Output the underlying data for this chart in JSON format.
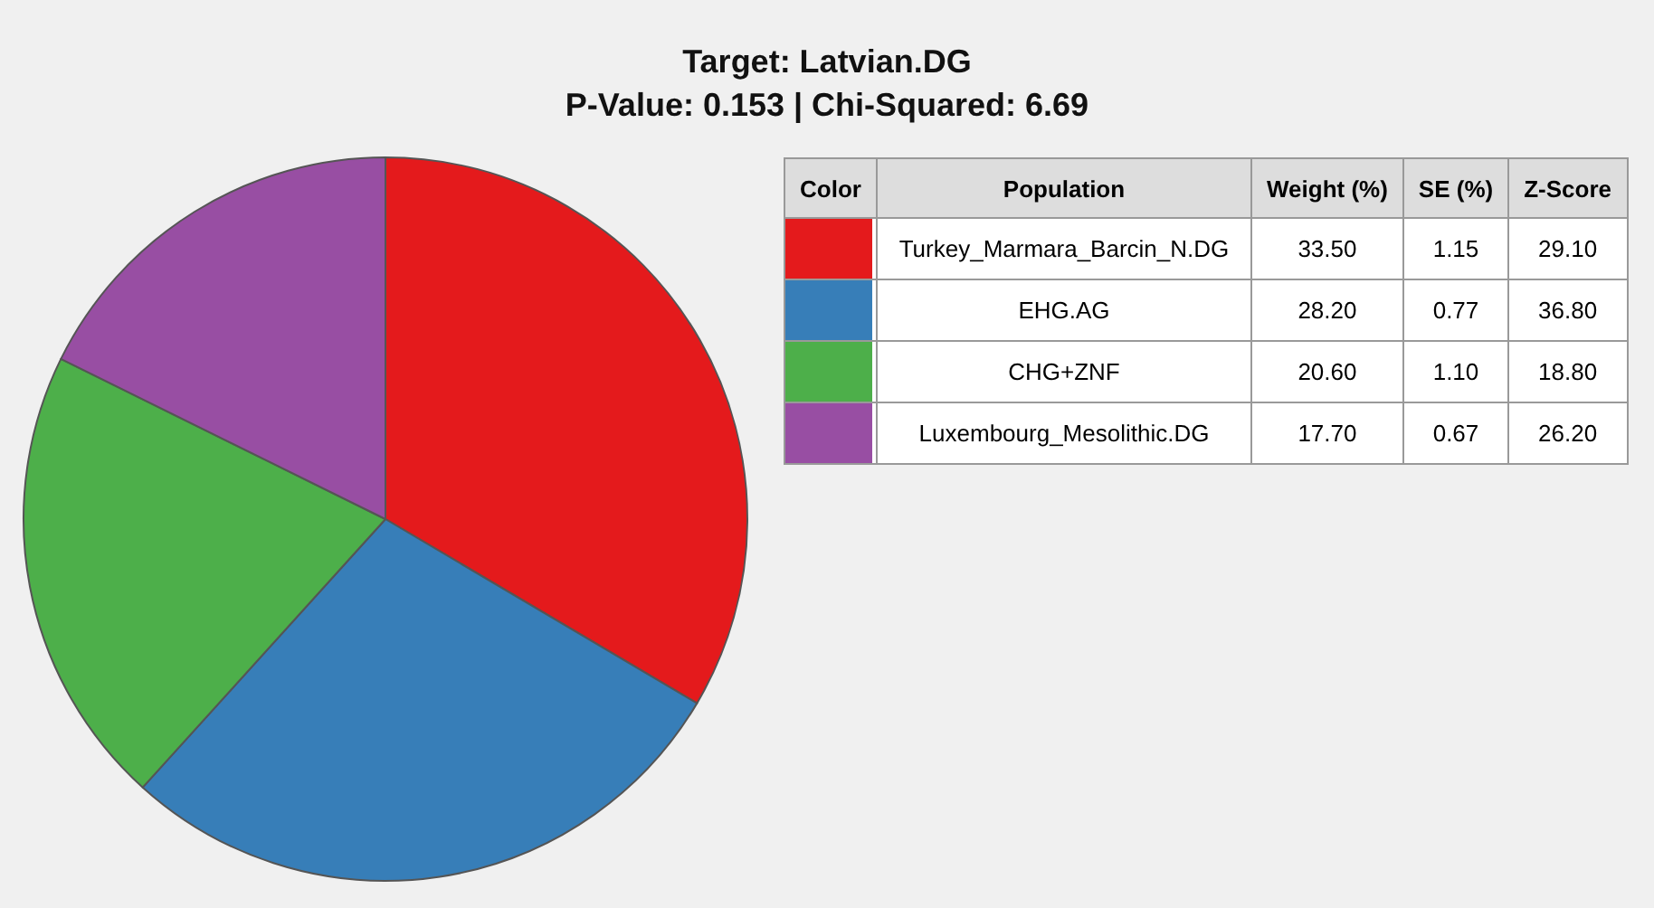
{
  "chart_data": [
    {
      "type": "pie",
      "title": "Target: Latvian.DG",
      "subtitle": "P-Value: 0.153 | Chi-Squared: 6.69",
      "values": [
        33.5,
        28.2,
        20.6,
        17.7
      ],
      "colors": [
        "#e41a1c",
        "#377eb8",
        "#4daf4a",
        "#984ea3"
      ]
    },
    {
      "type": "other",
      "annotations": [
        "Color",
        "Population"
      ],
      "categories": [
        "Turkey_Marmara_Barcin_N.DG",
        "EHG.AG",
        "CHG+ZNF",
        "Luxembourg_Mesolithic.DG"
      ],
      "colors": [
        "#e41a1c",
        "#377eb8",
        "#4daf4a",
        "#984ea3"
      ],
      "series": [
        {
          "name": "Weight (%)",
          "values": [
            33.5,
            28.2,
            20.6,
            17.7
          ],
          "value_labels": [
            "33.50",
            "28.20",
            "20.60",
            "17.70"
          ]
        },
        {
          "name": "SE (%)",
          "values": [
            1.15,
            0.77,
            1.1,
            0.67
          ],
          "value_labels": [
            "1.15",
            "0.77",
            "1.10",
            "0.67"
          ]
        },
        {
          "name": "Z-Score",
          "values": [
            29.1,
            36.8,
            18.8,
            26.2
          ],
          "value_labels": [
            "29.10",
            "36.80",
            "18.80",
            "26.20"
          ]
        }
      ]
    }
  ]
}
